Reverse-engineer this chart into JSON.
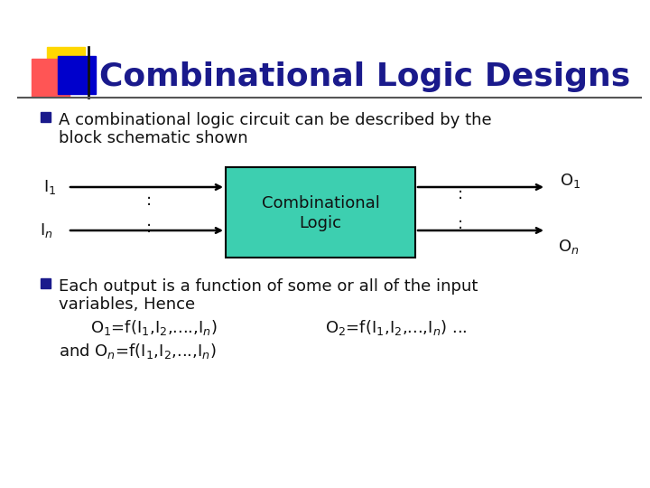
{
  "title": "Combinational Logic Designs",
  "title_color": "#1a1a8c",
  "bg_color": "#ffffff",
  "bullet_color": "#1a1a8c",
  "box_color": "#3dcfb0",
  "box_edge_color": "#000000",
  "box_text1": "Combinational",
  "box_text2": "Logic",
  "accent_yellow": "#FFD700",
  "accent_red": "#FF5555",
  "accent_blue": "#0000CC",
  "title_fontsize": 26,
  "body_fontsize": 13,
  "diagram_fontsize": 13
}
